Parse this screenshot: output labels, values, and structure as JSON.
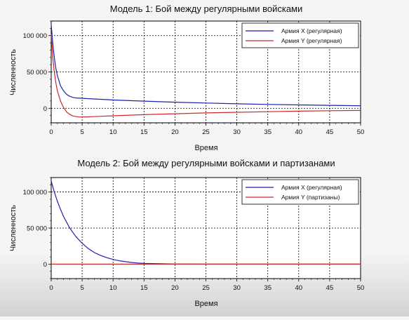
{
  "chart_data": [
    {
      "type": "line",
      "title": "Модель 1: Бой между регулярными войсками",
      "xlabel": "Время",
      "ylabel": "Численность",
      "xlim": [
        0,
        50
      ],
      "ylim": [
        -20000,
        120000
      ],
      "x_ticks": [
        0,
        5,
        10,
        15,
        20,
        25,
        30,
        35,
        40,
        45,
        50
      ],
      "x_tick_labels": [
        "0",
        "5",
        "10",
        "15",
        "20",
        "25",
        "30",
        "35",
        "40",
        "45",
        "50"
      ],
      "y_ticks": [
        0,
        50000,
        100000
      ],
      "y_tick_labels": [
        "0",
        "50 000",
        "100 000"
      ],
      "grid": true,
      "legend_position": "top-right",
      "series": [
        {
          "name": "Армия X (регулярная)",
          "color": "#1f1fb0",
          "x": [
            0,
            0.25,
            0.5,
            0.75,
            1,
            1.5,
            2,
            2.5,
            3,
            3.5,
            4,
            5,
            6,
            8,
            10,
            15,
            20,
            25,
            30,
            35,
            40,
            45,
            50
          ],
          "y": [
            115000,
            90000,
            70000,
            55000,
            45000,
            31000,
            24000,
            19000,
            16500,
            15000,
            14200,
            13800,
            13200,
            12300,
            11400,
            9800,
            8400,
            7200,
            6200,
            5300,
            4600,
            4000,
            3500
          ]
        },
        {
          "name": "Армия Y (регулярная)",
          "color": "#cc2a2a",
          "x": [
            0,
            0.25,
            0.5,
            0.75,
            1,
            1.5,
            2,
            2.5,
            3,
            3.5,
            4,
            4.5,
            5,
            6,
            8,
            10,
            15,
            20,
            25,
            30,
            35,
            40,
            45,
            50
          ],
          "y": [
            102000,
            70000,
            50000,
            35000,
            24000,
            10000,
            1000,
            -5000,
            -8500,
            -10500,
            -11500,
            -12000,
            -12000,
            -11800,
            -11000,
            -10300,
            -8800,
            -7500,
            -6400,
            -5500,
            -4700,
            -4000,
            -3400,
            -2900
          ]
        }
      ]
    },
    {
      "type": "line",
      "title": "Модель 2: Бой между регулярными войсками и партизанами",
      "xlabel": "Время",
      "ylabel": "Численность",
      "xlim": [
        0,
        50
      ],
      "ylim": [
        -20000,
        120000
      ],
      "x_ticks": [
        0,
        5,
        10,
        15,
        20,
        25,
        30,
        35,
        40,
        45,
        50
      ],
      "x_tick_labels": [
        "0",
        "5",
        "10",
        "15",
        "20",
        "25",
        "30",
        "35",
        "40",
        "45",
        "50"
      ],
      "y_ticks": [
        0,
        50000,
        100000
      ],
      "y_tick_labels": [
        "0",
        "50 000",
        "100 000"
      ],
      "grid": true,
      "legend_position": "top-right",
      "series": [
        {
          "name": "Армия X (регулярная)",
          "color": "#1f1fb0",
          "x": [
            0,
            0.5,
            1,
            1.5,
            2,
            2.5,
            3,
            3.5,
            4,
            5,
            6,
            7,
            8,
            9,
            10,
            11,
            12,
            13,
            14,
            15,
            20,
            25,
            30,
            35,
            40,
            45,
            50
          ],
          "y": [
            115000,
            100000,
            87000,
            76000,
            66000,
            58000,
            50000,
            44000,
            38000,
            29000,
            21500,
            16000,
            12000,
            9000,
            6500,
            4700,
            3400,
            2400,
            1600,
            1000,
            200,
            0,
            0,
            0,
            0,
            0,
            0
          ]
        },
        {
          "name": "Армия Y (партизаны)",
          "color": "#cc2a2a",
          "x": [
            0,
            50
          ],
          "y": [
            0,
            0
          ]
        }
      ]
    }
  ]
}
